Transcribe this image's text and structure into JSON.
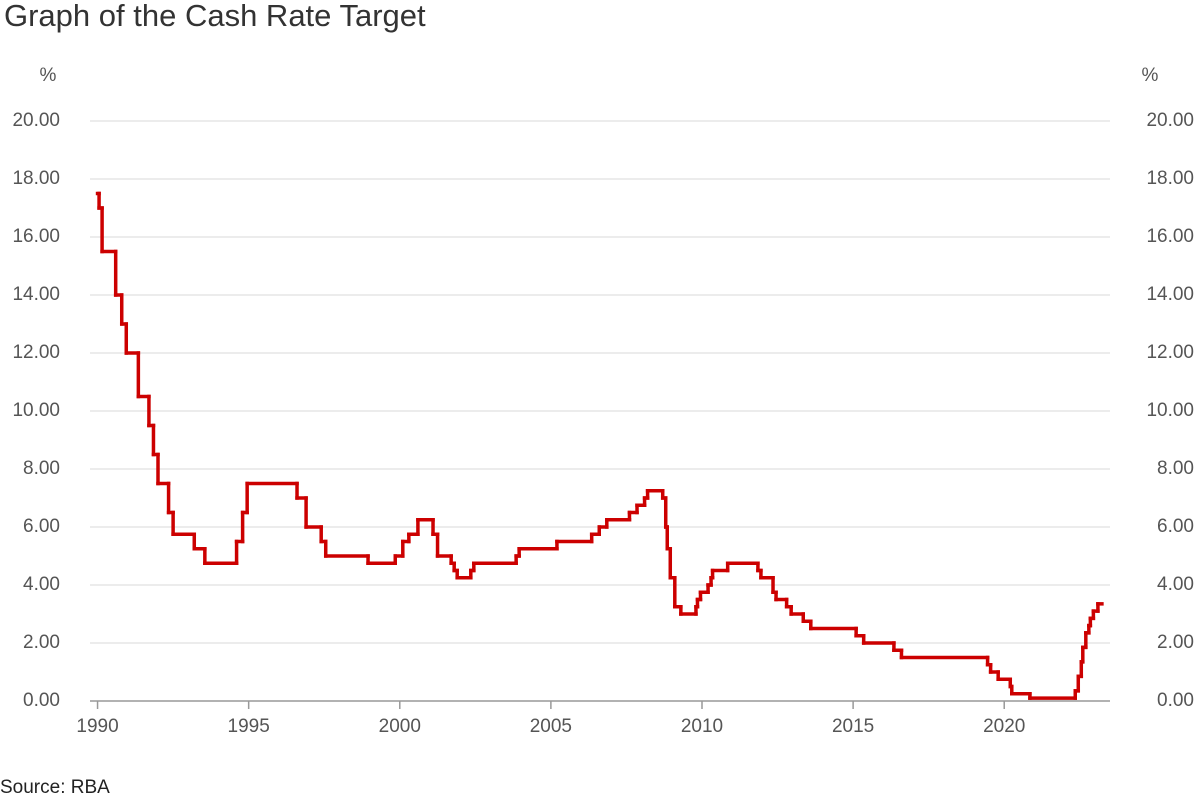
{
  "chart_data": {
    "type": "step",
    "title": "Graph of the Cash Rate Target",
    "source": "Source: RBA",
    "y_label": "%",
    "y2_label": "%",
    "xlim": [
      1989.75,
      2023.5
    ],
    "xticks": [
      1990,
      1995,
      2000,
      2005,
      2010,
      2015,
      2020
    ],
    "ylim": [
      0,
      20
    ],
    "yticks": [
      {
        "value": 0,
        "label": "0.00"
      },
      {
        "value": 2,
        "label": "2.00"
      },
      {
        "value": 4,
        "label": "4.00"
      },
      {
        "value": 6,
        "label": "6.00"
      },
      {
        "value": 8,
        "label": "8.00"
      },
      {
        "value": 10,
        "label": "10.00"
      },
      {
        "value": 12,
        "label": "12.00"
      },
      {
        "value": 14,
        "label": "14.00"
      },
      {
        "value": 16,
        "label": "16.00"
      },
      {
        "value": 18,
        "label": "18.00"
      },
      {
        "value": 20,
        "label": "20.00"
      }
    ],
    "y2lim": [
      0,
      20
    ],
    "y2ticks": [
      {
        "value": 0,
        "label": "0.00"
      },
      {
        "value": 2,
        "label": "2.00"
      },
      {
        "value": 4,
        "label": "4.00"
      },
      {
        "value": 6,
        "label": "6.00"
      },
      {
        "value": 8,
        "label": "8.00"
      },
      {
        "value": 10,
        "label": "10.00"
      },
      {
        "value": 12,
        "label": "12.00"
      },
      {
        "value": 14,
        "label": "14.00"
      },
      {
        "value": 16,
        "label": "16.00"
      },
      {
        "value": 18,
        "label": "18.00"
      },
      {
        "value": 20,
        "label": "20.00"
      }
    ],
    "grid": true,
    "series": [
      {
        "color": "#cc0000",
        "x": [
          1990.0,
          1990.05,
          1990.15,
          1990.6,
          1990.8,
          1990.95,
          1991.35,
          1991.7,
          1991.85,
          1992.0,
          1992.35,
          1992.5,
          1993.2,
          1993.55,
          1994.6,
          1994.8,
          1994.95,
          1996.6,
          1996.9,
          1997.4,
          1997.55,
          1998.95,
          1999.85,
          2000.1,
          2000.3,
          2000.6,
          2001.1,
          2001.25,
          2001.7,
          2001.8,
          2001.9,
          2002.35,
          2002.45,
          2003.85,
          2003.95,
          2005.2,
          2006.35,
          2006.6,
          2006.85,
          2007.6,
          2007.85,
          2008.1,
          2008.2,
          2008.7,
          2008.8,
          2008.85,
          2008.95,
          2009.1,
          2009.3,
          2009.8,
          2009.85,
          2009.95,
          2010.2,
          2010.3,
          2010.35,
          2010.85,
          2011.85,
          2011.95,
          2012.35,
          2012.45,
          2012.8,
          2012.95,
          2013.35,
          2013.6,
          2015.1,
          2015.35,
          2016.35,
          2016.6,
          2019.45,
          2019.55,
          2019.8,
          2020.2,
          2020.25,
          2020.85,
          2022.35,
          2022.45,
          2022.55,
          2022.6,
          2022.7,
          2022.8,
          2022.85,
          2022.95,
          2023.1
        ],
        "values": [
          17.5,
          17.0,
          15.5,
          14.0,
          13.0,
          12.0,
          10.5,
          9.5,
          8.5,
          7.5,
          6.5,
          5.75,
          5.25,
          4.75,
          5.5,
          6.5,
          7.5,
          7.0,
          6.0,
          5.5,
          5.0,
          4.75,
          5.0,
          5.5,
          5.75,
          6.25,
          5.75,
          5.0,
          4.75,
          4.5,
          4.25,
          4.5,
          4.75,
          5.0,
          5.25,
          5.5,
          5.75,
          6.0,
          6.25,
          6.5,
          6.75,
          7.0,
          7.25,
          7.0,
          6.0,
          5.25,
          4.25,
          3.25,
          3.0,
          3.25,
          3.5,
          3.75,
          4.0,
          4.25,
          4.5,
          4.75,
          4.5,
          4.25,
          3.75,
          3.5,
          3.25,
          3.0,
          2.75,
          2.5,
          2.25,
          2.0,
          1.75,
          1.5,
          1.25,
          1.0,
          0.75,
          0.5,
          0.25,
          0.1,
          0.35,
          0.85,
          1.35,
          1.85,
          2.35,
          2.6,
          2.85,
          3.1,
          3.35
        ]
      }
    ]
  }
}
